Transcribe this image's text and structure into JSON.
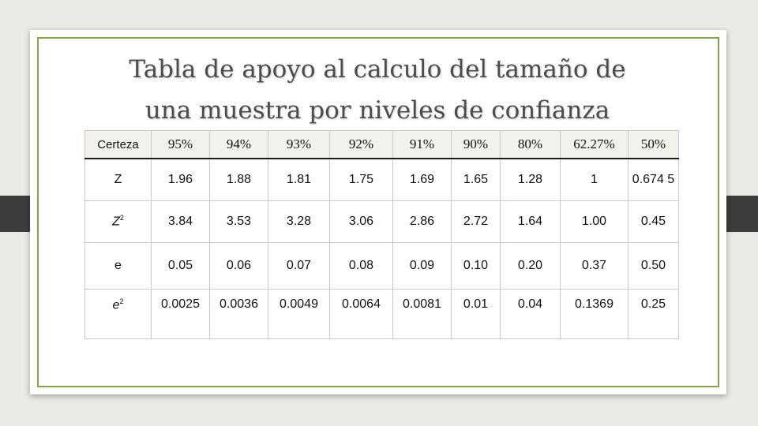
{
  "title_lines": [
    "Tabla de apoyo al calculo del tamaño de",
    "una muestra por niveles de confianza"
  ],
  "colors": {
    "frame": "#84a051",
    "background": "#eceae6",
    "side_tabs": "#3e3d3b"
  },
  "table": {
    "header_label": "Certeza",
    "confidence_levels": [
      "95%",
      "94%",
      "93%",
      "92%",
      "91%",
      "90%",
      "80%",
      "62.27%",
      "50%"
    ],
    "rows": [
      {
        "label": "Z",
        "values": [
          "1.96",
          "1.88",
          "1.81",
          "1.75",
          "1.69",
          "1.65",
          "1.28",
          "1",
          "0.674 5"
        ]
      },
      {
        "label_base": "Z",
        "label_sup": "2",
        "values": [
          "3.84",
          "3.53",
          "3.28",
          "3.06",
          "2.86",
          "2.72",
          "1.64",
          "1.00",
          "0.45"
        ]
      },
      {
        "label": "e",
        "values": [
          "0.05",
          "0.06",
          "0.07",
          "0.08",
          "0.09",
          "0.10",
          "0.20",
          "0.37",
          "0.50"
        ]
      },
      {
        "label_base": "e",
        "label_sup": "2",
        "values": [
          "0.0025",
          "0.0036",
          "0.0049",
          "0.0064",
          "0.0081",
          "0.01",
          "0.04",
          "0.1369",
          "0.25"
        ]
      }
    ]
  }
}
